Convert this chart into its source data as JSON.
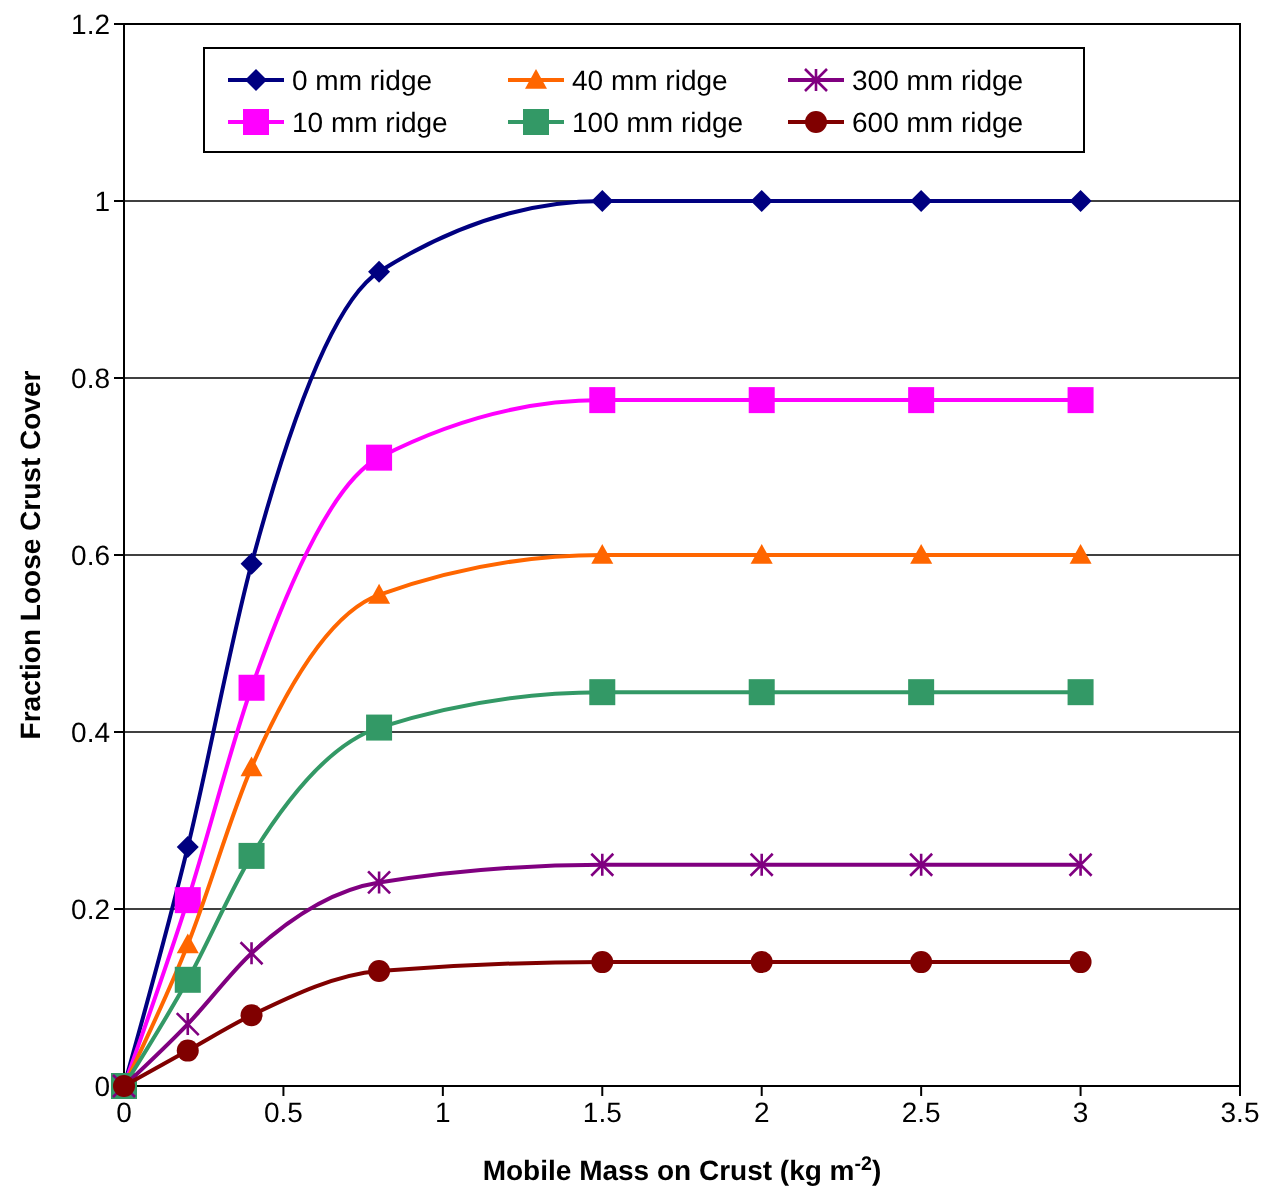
{
  "chart_data": {
    "type": "line",
    "xlabel": "Mobile Mass on Crust (kg m$^{-2}$)",
    "ylabel": "Fraction Loose Crust Cover",
    "x": [
      0,
      0.2,
      0.4,
      0.8,
      1.5,
      2,
      2.5,
      3
    ],
    "xlim": [
      0,
      3.5
    ],
    "xticks": [
      0,
      0.5,
      1,
      1.5,
      2,
      2.5,
      3,
      3.5
    ],
    "ylim": [
      0,
      1.2
    ],
    "yticks": [
      0,
      0.2,
      0.4,
      0.6,
      0.8,
      1,
      1.2
    ],
    "grid": "y",
    "legend": "top",
    "line_style": "solid",
    "series": [
      {
        "name": "0 mm ridge",
        "color": "#000080",
        "marker": "diamond",
        "values": [
          0,
          0.27,
          0.59,
          0.92,
          1,
          1,
          1,
          1
        ]
      },
      {
        "name": "10 mm ridge",
        "color": "#ff00ff",
        "marker": "square",
        "values": [
          0,
          0.21,
          0.45,
          0.71,
          0.775,
          0.775,
          0.775,
          0.775
        ]
      },
      {
        "name": "40 mm ridge",
        "color": "#ff6600",
        "marker": "triangle",
        "values": [
          0,
          0.16,
          0.36,
          0.555,
          0.6,
          0.6,
          0.6,
          0.6
        ]
      },
      {
        "name": "100 mm ridge",
        "color": "#339966",
        "marker": "square",
        "values": [
          0,
          0.12,
          0.26,
          0.405,
          0.445,
          0.445,
          0.445,
          0.445
        ]
      },
      {
        "name": "300 mm ridge",
        "color": "#800080",
        "marker": "cross",
        "values": [
          0,
          0.07,
          0.15,
          0.23,
          0.25,
          0.25,
          0.25,
          0.25
        ]
      },
      {
        "name": "600 mm ridge",
        "color": "#800000",
        "marker": "circle",
        "values": [
          0,
          0.04,
          0.08,
          0.13,
          0.14,
          0.14,
          0.14,
          0.14
        ]
      }
    ]
  }
}
